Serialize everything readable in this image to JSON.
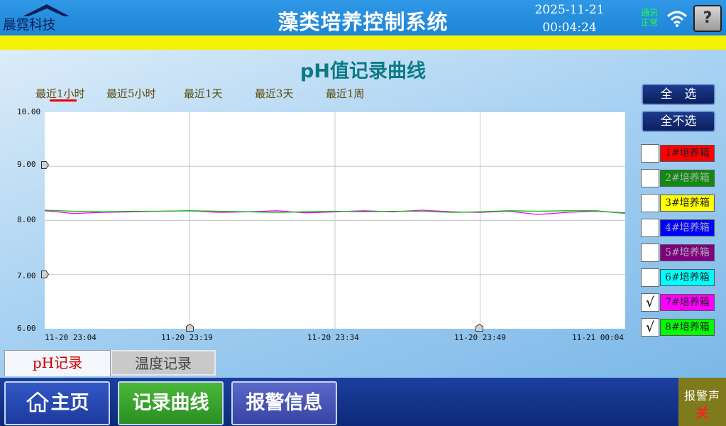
{
  "header": {
    "logo_text": "晨霓科技",
    "title": "藻类培养控制系统",
    "date": "2025-11-21",
    "time": "00:04:24",
    "comm_line1": "通讯",
    "comm_line2": "正常",
    "help_label": "?",
    "status_colors": {
      "comm_ok": "#22ff44",
      "header_bg": "#1f84d6",
      "yellow_bar": "#f3f300"
    }
  },
  "page": {
    "title": "pH值记录曲线",
    "range_tabs": [
      "最近1小时",
      "最近5小时",
      "最近1天",
      "最近3天",
      "最近1周"
    ],
    "active_range": "最近1小时"
  },
  "controls": {
    "select_all": "全　选",
    "deselect_all": "全不选"
  },
  "legend": [
    {
      "label": "1#培养箱",
      "color": "#ff0000",
      "checked": false,
      "check_mark": ""
    },
    {
      "label": "2#培养箱",
      "color": "#108a10",
      "checked": false,
      "check_mark": ""
    },
    {
      "label": "3#培养箱",
      "color": "#ffff00",
      "checked": false,
      "check_mark": ""
    },
    {
      "label": "4#培养箱",
      "color": "#0000ff",
      "checked": false,
      "check_mark": ""
    },
    {
      "label": "5#培养箱",
      "color": "#800080",
      "checked": false,
      "check_mark": ""
    },
    {
      "label": "6#培养箱",
      "color": "#00ffff",
      "checked": false,
      "check_mark": ""
    },
    {
      "label": "7#培养箱",
      "color": "#ff00ff",
      "checked": true,
      "check_mark": "√"
    },
    {
      "label": "8#培养箱",
      "color": "#00ff00",
      "checked": true,
      "check_mark": "√"
    }
  ],
  "chart_data": {
    "type": "line",
    "ylim": [
      6.0,
      10.0
    ],
    "y_ticks": [
      "10.00",
      "9.00",
      "8.00",
      "7.00",
      "6.00"
    ],
    "x_ticks": [
      "11-20 23:04",
      "11-20 23:19",
      "11-20 23:34",
      "11-20 23:49",
      "11-21 00:04"
    ],
    "x_minutes": [
      0,
      3,
      6,
      9,
      12,
      15,
      18,
      21,
      24,
      27,
      30,
      33,
      36,
      39,
      42,
      45,
      48,
      51,
      54,
      57,
      60
    ],
    "series": [
      {
        "name": "7#培养箱",
        "color": "#ff00ff",
        "values": [
          8.18,
          8.13,
          8.15,
          8.16,
          8.17,
          8.18,
          8.15,
          8.16,
          8.18,
          8.14,
          8.16,
          8.18,
          8.16,
          8.19,
          8.16,
          8.15,
          8.17,
          8.11,
          8.15,
          8.17,
          8.14
        ]
      },
      {
        "name": "8#培养箱",
        "color": "#00c000",
        "values": [
          8.19,
          8.17,
          8.16,
          8.17,
          8.17,
          8.18,
          8.17,
          8.16,
          8.15,
          8.16,
          8.17,
          8.16,
          8.17,
          8.17,
          8.15,
          8.16,
          8.18,
          8.17,
          8.18,
          8.18,
          8.13
        ]
      }
    ],
    "grid": true,
    "legend": "right"
  },
  "subtabs": {
    "ph": "pH记录",
    "temp": "温度记录"
  },
  "nav": {
    "home": "主页",
    "curve": "记录曲线",
    "alarm": "报警信息"
  },
  "alarm_sound": {
    "label": "报警声",
    "state": "关"
  }
}
